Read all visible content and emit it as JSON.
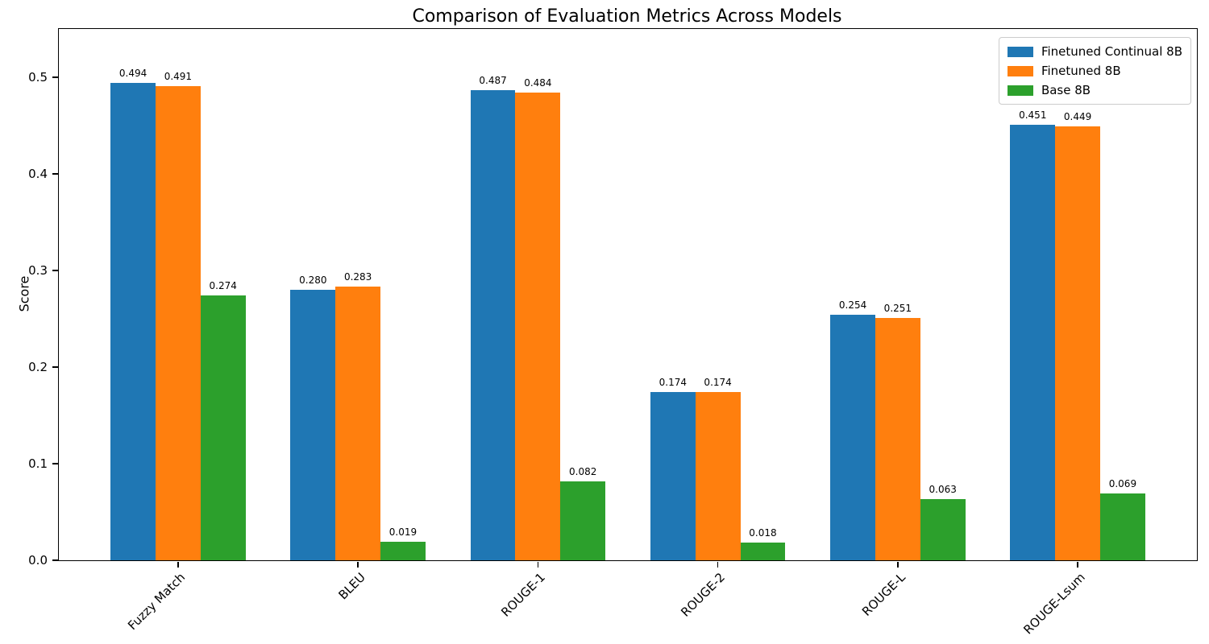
{
  "chart_data": {
    "type": "bar",
    "title": "Comparison of Evaluation Metrics Across Models",
    "xlabel": "",
    "ylabel": "Score",
    "categories": [
      "Fuzzy Match",
      "BLEU",
      "ROUGE-1",
      "ROUGE-2",
      "ROUGE-L",
      "ROUGE-Lsum"
    ],
    "series": [
      {
        "name": "Finetuned Continual 8B",
        "color": "#1f77b4",
        "values": [
          0.494,
          0.28,
          0.487,
          0.174,
          0.254,
          0.451
        ]
      },
      {
        "name": "Finetuned 8B",
        "color": "#ff7f0e",
        "values": [
          0.491,
          0.283,
          0.484,
          0.174,
          0.251,
          0.449
        ]
      },
      {
        "name": "Base 8B",
        "color": "#2ca02c",
        "values": [
          0.274,
          0.019,
          0.082,
          0.018,
          0.063,
          0.069
        ]
      }
    ],
    "ylim": [
      0,
      0.55
    ],
    "yticks": [
      0.0,
      0.1,
      0.2,
      0.3,
      0.4,
      0.5
    ],
    "value_label_format": "3-decimals",
    "legend_position": "upper right",
    "grid": false
  }
}
